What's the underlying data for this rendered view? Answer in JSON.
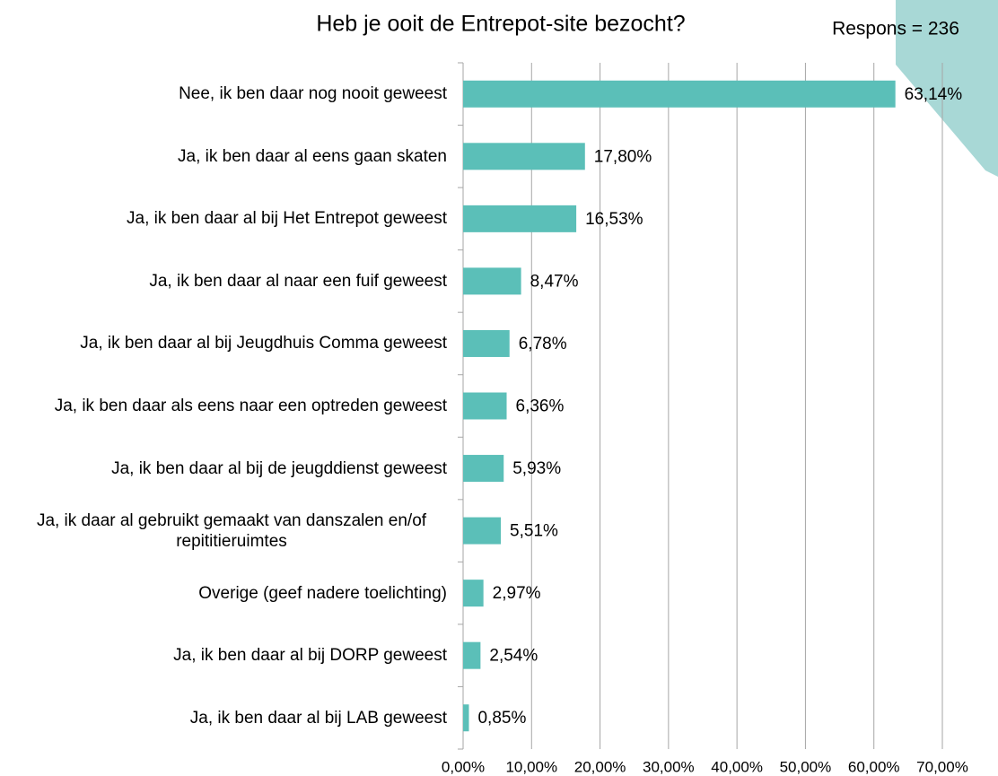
{
  "chart_data": {
    "type": "bar",
    "orientation": "horizontal",
    "title": "Heb je ooit de Entrepot-site bezocht?",
    "annotation": "Respons = 236",
    "categories": [
      "Nee, ik ben daar nog nooit geweest",
      "Ja, ik ben daar al eens gaan skaten",
      "Ja, ik ben daar al bij Het Entrepot geweest",
      "Ja, ik ben daar al naar een fuif geweest",
      "Ja, ik ben daar al bij Jeugdhuis Comma geweest",
      "Ja, ik ben daar als eens naar een optreden geweest",
      "Ja, ik ben daar al bij de jeugddienst geweest",
      "Ja, ik daar al gebruikt gemaakt van danszalen en/of repititieruimtes",
      "Overige (geef nadere toelichting)",
      "Ja, ik ben daar al bij DORP geweest",
      "Ja, ik ben daar al bij LAB geweest"
    ],
    "values": [
      63.14,
      17.8,
      16.53,
      8.47,
      6.78,
      6.36,
      5.93,
      5.51,
      2.97,
      2.54,
      0.85
    ],
    "value_labels": [
      "63,14%",
      "17,80%",
      "16,53%",
      "8,47%",
      "6,78%",
      "6,36%",
      "5,93%",
      "5,51%",
      "2,97%",
      "2,54%",
      "0,85%"
    ],
    "color": "#5bbfb8",
    "xlim": [
      0,
      70
    ],
    "xticks": [
      {
        "value": 0,
        "label": "0,00%"
      },
      {
        "value": 10,
        "label": "10,00%"
      },
      {
        "value": 20,
        "label": "20,00%"
      },
      {
        "value": 30,
        "label": "30,00%"
      },
      {
        "value": 40,
        "label": "40,00%"
      },
      {
        "value": 50,
        "label": "50,00%"
      },
      {
        "value": 60,
        "label": "60,00%"
      },
      {
        "value": 70,
        "label": "70,00%"
      }
    ],
    "grid": true
  }
}
